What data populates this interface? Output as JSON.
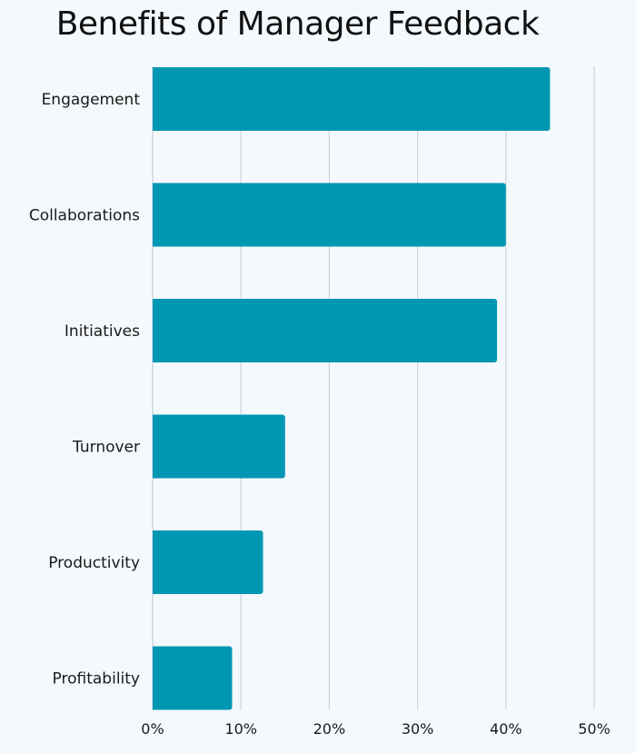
{
  "chart_data": {
    "type": "bar",
    "orientation": "horizontal",
    "title": "Benefits of Manager Feedback",
    "xlabel": "",
    "ylabel": "",
    "categories": [
      "Engagement",
      "Collaborations",
      "Initiatives",
      "Turnover",
      "Productivity",
      "Profitability"
    ],
    "values": [
      45,
      40,
      39,
      15,
      12.5,
      9
    ],
    "value_unit": "%",
    "xlim": [
      0,
      50
    ],
    "xticks": [
      "0%",
      "10%",
      "20%",
      "30%",
      "40%",
      "50%"
    ],
    "grid": true,
    "legend": "none",
    "colors": {
      "bar": "#0097b2",
      "grid": "#cdd3d8",
      "background": "#f4f9fd"
    }
  }
}
